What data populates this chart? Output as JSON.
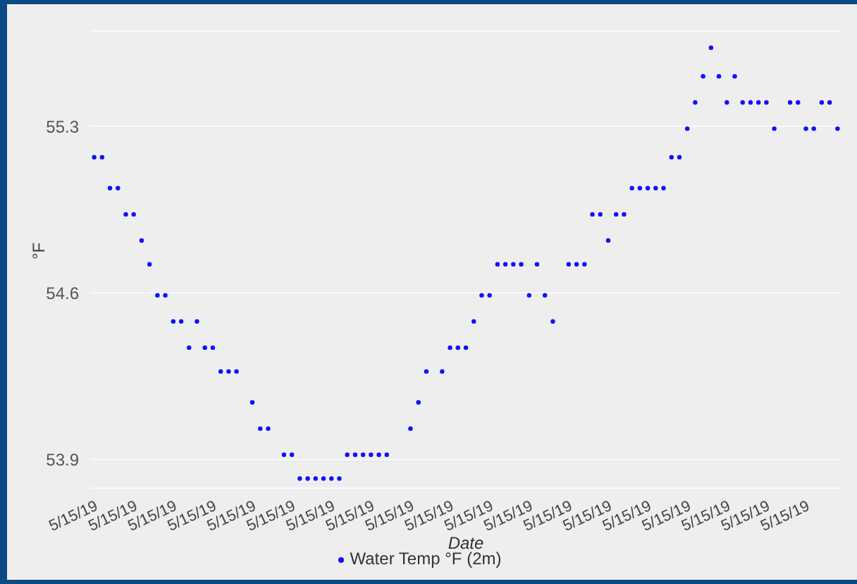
{
  "chart_data": {
    "type": "scatter",
    "xlabel": "Date",
    "ylabel": "°F",
    "categories": [
      "5/15/19",
      null,
      null,
      null,
      null,
      "5/15/19",
      null,
      null,
      null,
      null,
      "5/15/19",
      null,
      null,
      null,
      null,
      "5/15/19",
      null,
      null,
      null,
      null,
      "5/15/19",
      null,
      null,
      null,
      null,
      "5/15/19",
      null,
      null,
      null,
      null,
      "5/15/19",
      null,
      null,
      null,
      null,
      "5/15/19",
      null,
      null,
      null,
      null,
      "5/15/19",
      null,
      null,
      null,
      null,
      "5/15/19",
      null,
      null,
      null,
      null,
      "5/15/19",
      null,
      null,
      null,
      null,
      "5/15/19",
      null,
      null,
      null,
      null,
      "5/15/19",
      null,
      null,
      null,
      null,
      "5/15/19",
      null,
      null,
      null,
      null,
      "5/15/19",
      null,
      null,
      null,
      null,
      "5/15/19",
      null,
      null,
      null,
      null,
      "5/15/19",
      null,
      null,
      null,
      null,
      "5/15/19",
      null,
      null,
      null,
      null,
      "5/15/19",
      null,
      null,
      null,
      null
    ],
    "series": [
      {
        "name": "Water Temp °F (2m)",
        "color": "#1010ff",
        "values": [
          55.17,
          55.17,
          55.04,
          55.04,
          54.93,
          54.93,
          54.82,
          54.72,
          54.59,
          54.59,
          54.48,
          54.48,
          54.37,
          54.48,
          54.37,
          54.37,
          54.27,
          54.27,
          54.27,
          null,
          54.14,
          54.03,
          54.03,
          null,
          53.92,
          53.92,
          53.82,
          53.82,
          53.82,
          53.82,
          53.82,
          53.82,
          53.92,
          53.92,
          53.92,
          53.92,
          53.92,
          53.92,
          null,
          null,
          54.03,
          54.14,
          54.27,
          null,
          54.27,
          54.37,
          54.37,
          54.37,
          54.48,
          54.59,
          54.59,
          54.72,
          54.72,
          54.72,
          54.72,
          54.59,
          54.72,
          54.59,
          54.48,
          null,
          54.72,
          54.72,
          54.72,
          54.93,
          54.93,
          54.82,
          54.93,
          54.93,
          55.04,
          55.04,
          55.04,
          55.04,
          55.04,
          55.17,
          55.17,
          55.29,
          55.4,
          55.51,
          55.63,
          55.51,
          55.4,
          55.51,
          55.4,
          55.4,
          55.4,
          55.4,
          55.29,
          null,
          55.4,
          55.4,
          55.29,
          55.29,
          55.4,
          55.4,
          55.29
        ]
      }
    ],
    "ylim": [
      53.78,
      55.7
    ],
    "yticks": [
      53.9,
      54.6,
      55.3
    ],
    "grid": "y",
    "legend": "bottom",
    "marker": "circle"
  }
}
